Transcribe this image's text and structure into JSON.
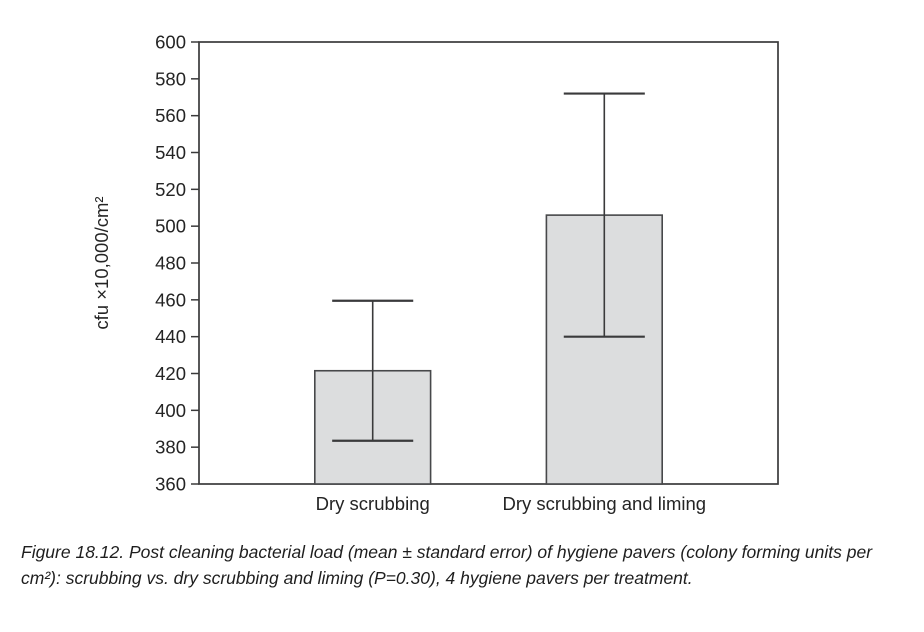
{
  "figure": {
    "caption": "Figure 18.12. Post cleaning bacterial load (mean ± standard error) of hygiene pavers (colony forming units per cm²): scrubbing vs. dry scrubbing and liming (P=0.30), 4 hygiene pavers per treatment."
  },
  "chart_data": {
    "type": "bar",
    "title": "",
    "categories": [
      "Dry scrubbing",
      "Dry scrubbing and liming"
    ],
    "values": [
      421.5,
      506
    ],
    "error_upper": [
      459.5,
      572
    ],
    "error_lower": [
      383.5,
      440
    ],
    "xlabel": "",
    "ylabel": "cfu ×10,000/cm²",
    "ylim": [
      360,
      600
    ],
    "yticks": [
      360,
      380,
      400,
      420,
      440,
      460,
      480,
      500,
      520,
      540,
      560,
      580,
      600
    ],
    "grid": false,
    "legend": false,
    "colors": {
      "bar_fill": "#dcddde",
      "bar_stroke": "#47484a",
      "axis": "#3a3a3b",
      "text": "#242424"
    }
  }
}
